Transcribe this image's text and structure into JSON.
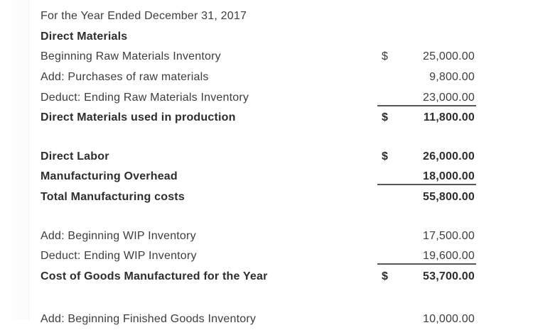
{
  "colors": {
    "background": "#ffffff",
    "text": "#3d3d3d",
    "bold_text": "#2d2d2d",
    "total_rule": "#575757"
  },
  "schedule": {
    "subtitle": "For the Year Ended December 31, 2017",
    "currency_symbol": "$",
    "rows": [
      {
        "label": "Direct Materials",
        "dollar": "",
        "amount": "",
        "bold": true,
        "underline": false,
        "space_before": 0
      },
      {
        "label": "Beginning Raw Materials Inventory",
        "dollar": "$",
        "amount": "25,000.00",
        "bold": false,
        "underline": false,
        "space_before": 0
      },
      {
        "label": "Add: Purchases of raw materials",
        "dollar": "",
        "amount": "9,800.00",
        "bold": false,
        "underline": false,
        "space_before": 0
      },
      {
        "label": "Deduct: Ending Raw Materials Inventory",
        "dollar": "",
        "amount": "23,000.00",
        "bold": false,
        "underline": true,
        "space_before": 0
      },
      {
        "label": "Direct Materials used in production",
        "dollar": "$",
        "amount": "11,800.00",
        "bold": true,
        "underline": false,
        "space_before": 0
      },
      {
        "label": "Direct Labor",
        "dollar": "$",
        "amount": "26,000.00",
        "bold": true,
        "underline": false,
        "space_before": 26
      },
      {
        "label": "Manufacturing Overhead",
        "dollar": "",
        "amount": "18,000.00",
        "bold": true,
        "underline": true,
        "space_before": 0
      },
      {
        "label": "Total Manufacturing costs",
        "dollar": "",
        "amount": "55,800.00",
        "bold": true,
        "underline": false,
        "space_before": 0
      },
      {
        "label": "Add: Beginning WIP Inventory",
        "dollar": "",
        "amount": "17,500.00",
        "bold": false,
        "underline": false,
        "space_before": 26
      },
      {
        "label": "Deduct: Ending WIP Inventory",
        "dollar": "",
        "amount": "19,600.00",
        "bold": false,
        "underline": true,
        "space_before": 0
      },
      {
        "label": "Cost of Goods Manufactured for the Year",
        "dollar": "$",
        "amount": "53,700.00",
        "bold": true,
        "underline": false,
        "space_before": 0
      },
      {
        "label": "Add: Beginning Finished Goods Inventory",
        "dollar": "",
        "amount": "10,000.00",
        "bold": false,
        "underline": false,
        "space_before": 32
      }
    ]
  }
}
